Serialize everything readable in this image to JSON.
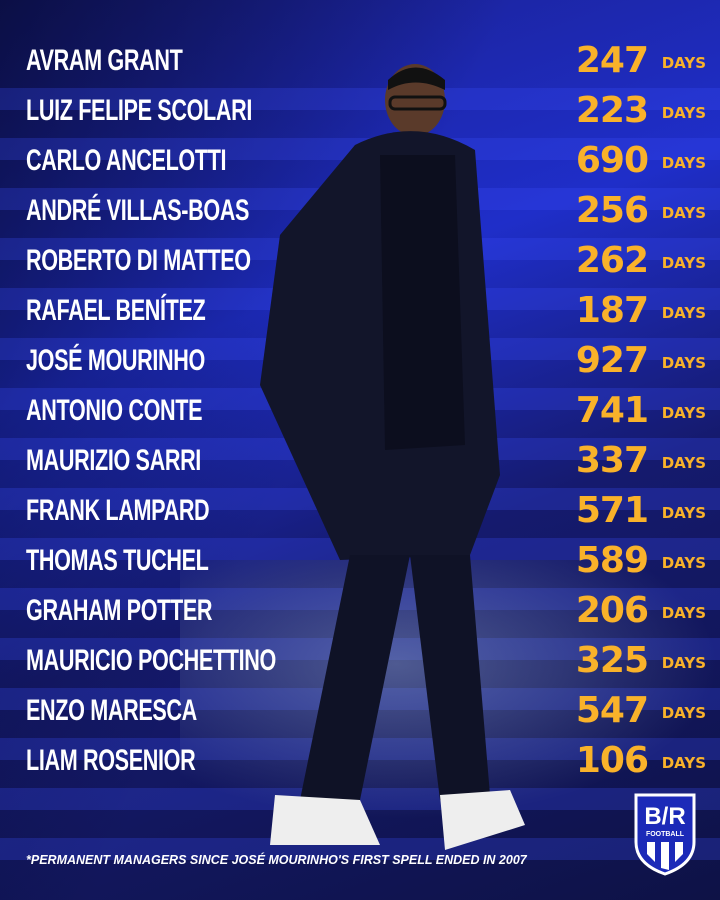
{
  "managers": [
    {
      "name": "AVRAM GRANT",
      "days": "247"
    },
    {
      "name": "LUIZ FELIPE SCOLARI",
      "days": "223"
    },
    {
      "name": "CARLO ANCELOTTI",
      "days": "690"
    },
    {
      "name": "ANDRÉ VILLAS-BOAS",
      "days": "256"
    },
    {
      "name": "ROBERTO DI MATTEO",
      "days": "262"
    },
    {
      "name": "RAFAEL BENÍTEZ",
      "days": "187"
    },
    {
      "name": "JOSÉ MOURINHO",
      "days": "927"
    },
    {
      "name": "ANTONIO CONTE",
      "days": "741"
    },
    {
      "name": "MAURIZIO SARRI",
      "days": "337"
    },
    {
      "name": "FRANK LAMPARD",
      "days": "571"
    },
    {
      "name": "THOMAS TUCHEL",
      "days": "589"
    },
    {
      "name": "GRAHAM POTTER",
      "days": "206"
    },
    {
      "name": "MAURICIO POCHETTINO",
      "days": "325"
    },
    {
      "name": "ENZO MARESCA",
      "days": "547"
    },
    {
      "name": "LIAM ROSENIOR",
      "days": "106"
    }
  ],
  "unit_label": "DAYS",
  "footnote": "*PERMANENT MANAGERS SINCE JOSÉ MOURINHO'S FIRST SPELL ENDED IN 2007",
  "logo": {
    "text": "B/R",
    "sub": "FOOTBALL"
  },
  "colors": {
    "accent": "#f9b22a",
    "background": "#1f2ec9",
    "text": "#ffffff"
  }
}
